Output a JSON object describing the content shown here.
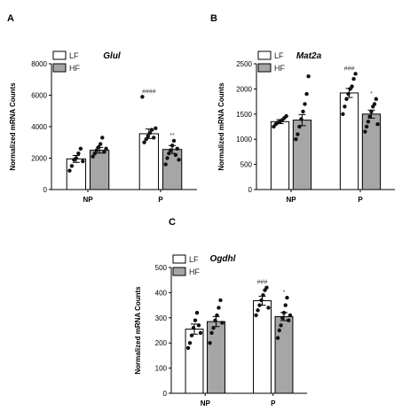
{
  "chart_data": [
    {
      "panel": "A",
      "type": "bar",
      "title": "Glul",
      "ylabel": "Normalized mRNA Counts",
      "ylim": [
        0,
        8000
      ],
      "yticks": [
        0,
        2000,
        4000,
        6000,
        8000
      ],
      "categories": [
        "NP",
        "P"
      ],
      "series": [
        {
          "name": "LF",
          "color": "#ffffff",
          "values": [
            1950,
            3550
          ],
          "sem": [
            220,
            300
          ],
          "points": [
            [
              1200,
              1500,
              1900,
              2000,
              2300,
              2600,
              1800
            ],
            [
              5900,
              3000,
              3200,
              3400,
              3600,
              3800,
              3300,
              3900
            ]
          ]
        },
        {
          "name": "HF",
          "color": "#a6a6a6",
          "values": [
            2500,
            2550
          ],
          "sem": [
            180,
            250
          ],
          "points": [
            [
              2100,
              2300,
              2500,
              2700,
              2900,
              3300,
              2400,
              2600
            ],
            [
              1600,
              2000,
              2300,
              2500,
              2800,
              3100,
              2200,
              2600,
              1900
            ]
          ]
        }
      ],
      "significance": [
        {
          "group": "P",
          "series": "LF",
          "mark": "####"
        },
        {
          "group": "P",
          "series": "HF",
          "mark": "**"
        }
      ]
    },
    {
      "panel": "B",
      "type": "bar",
      "title": "Mat2a",
      "ylabel": "Normalized mRNA Counts",
      "ylim": [
        0,
        2500
      ],
      "yticks": [
        0,
        500,
        1000,
        1500,
        2000,
        2500
      ],
      "categories": [
        "NP",
        "P"
      ],
      "series": [
        {
          "name": "LF",
          "color": "#ffffff",
          "values": [
            1350,
            1920
          ],
          "sem": [
            40,
            90
          ],
          "points": [
            [
              1250,
              1300,
              1330,
              1350,
              1380,
              1420,
              1460
            ],
            [
              1500,
              1650,
              1800,
              1900,
              2000,
              2050,
              2200,
              2300
            ]
          ]
        },
        {
          "name": "HF",
          "color": "#a6a6a6",
          "values": [
            1380,
            1500
          ],
          "sem": [
            110,
            80
          ],
          "points": [
            [
              1000,
              1100,
              1250,
              1400,
              1550,
              1700,
              1900,
              2250
            ],
            [
              1150,
              1250,
              1350,
              1450,
              1550,
              1650,
              1700,
              1800,
              1300
            ]
          ]
        }
      ],
      "significance": [
        {
          "group": "P",
          "series": "LF",
          "mark": "###"
        },
        {
          "group": "P",
          "series": "HF",
          "mark": "*"
        }
      ]
    },
    {
      "panel": "C",
      "type": "bar",
      "title": "Ogdhl",
      "ylabel": "Normalized mRNA Counts",
      "ylim": [
        0,
        500
      ],
      "yticks": [
        0,
        100,
        200,
        300,
        400,
        500
      ],
      "categories": [
        "NP",
        "P"
      ],
      "series": [
        {
          "name": "LF",
          "color": "#ffffff",
          "values": [
            255,
            368
          ],
          "sem": [
            20,
            18
          ],
          "points": [
            [
              180,
              200,
              230,
              260,
              290,
              320,
              270,
              240
            ],
            [
              310,
              330,
              350,
              370,
              390,
              410,
              420,
              340
            ]
          ]
        },
        {
          "name": "HF",
          "color": "#a6a6a6",
          "values": [
            285,
            305
          ],
          "sem": [
            20,
            16
          ],
          "points": [
            [
              200,
              240,
              260,
              290,
              310,
              340,
              370,
              280
            ],
            [
              220,
              250,
              270,
              300,
              320,
              350,
              380,
              290,
              310
            ]
          ]
        }
      ],
      "significance": [
        {
          "group": "P",
          "series": "LF",
          "mark": "###"
        },
        {
          "group": "P",
          "series": "HF",
          "mark": "*"
        }
      ]
    }
  ]
}
